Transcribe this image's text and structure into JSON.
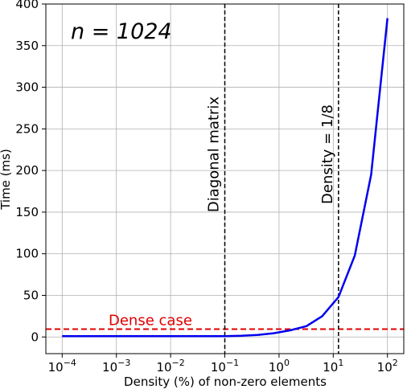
{
  "chart_data": {
    "type": "line",
    "x_scale": "log",
    "title": "n = 1024",
    "xlabel": "Density (%) of non-zero elements",
    "ylabel": "Time (ms)",
    "xlim": [
      5e-05,
      200
    ],
    "ylim": [
      -20,
      400
    ],
    "grid": true,
    "x_ticks": [
      {
        "value": 0.0001,
        "base": "10",
        "exp": "−4"
      },
      {
        "value": 0.001,
        "base": "10",
        "exp": "−3"
      },
      {
        "value": 0.01,
        "base": "10",
        "exp": "−2"
      },
      {
        "value": 0.1,
        "base": "10",
        "exp": "−1"
      },
      {
        "value": 1,
        "base": "10",
        "exp": "0"
      },
      {
        "value": 10,
        "base": "10",
        "exp": "1"
      },
      {
        "value": 100,
        "base": "10",
        "exp": "2"
      }
    ],
    "y_ticks": [
      0,
      50,
      100,
      150,
      200,
      250,
      300,
      350,
      400
    ],
    "series": [
      {
        "color": "#0000ee",
        "x": [
          0.0001,
          0.001,
          0.01,
          0.1,
          0.2,
          0.4,
          0.8,
          1.6,
          3.2,
          6.25,
          12.5,
          25,
          50,
          100
        ],
        "y": [
          1,
          1,
          1,
          1,
          1.5,
          2.5,
          4.5,
          8,
          13,
          25,
          48,
          98,
          195,
          383
        ]
      }
    ],
    "reference_lines": [
      {
        "orientation": "horizontal",
        "y": 9.5,
        "color": "#e00000",
        "label": "Dense case"
      },
      {
        "orientation": "vertical",
        "x": 0.1,
        "color": "#000000",
        "label": "Diagonal matrix"
      },
      {
        "orientation": "vertical",
        "x": 12.5,
        "color": "#000000",
        "label": "Density = 1/8"
      }
    ]
  }
}
